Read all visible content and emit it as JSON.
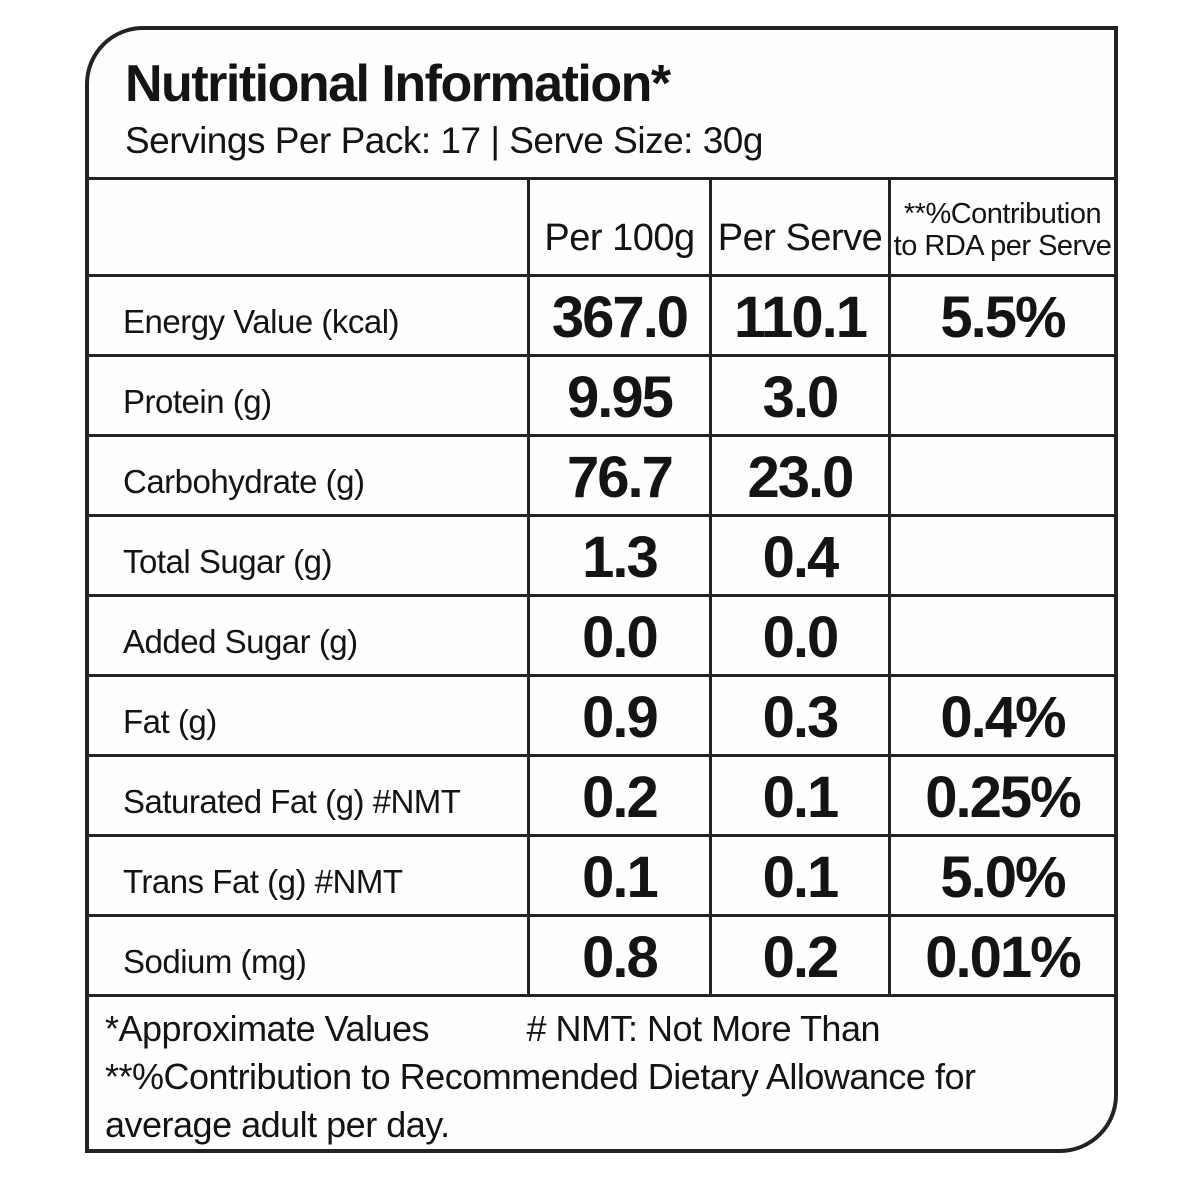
{
  "label": {
    "title": "Nutritional Information*",
    "subtitle": "Servings Per Pack: 17 | Serve Size: 30g",
    "columns": {
      "per_100g": "Per 100g",
      "per_serve": "Per Serve",
      "rda_line1": "**%Contribution",
      "rda_line2": "to RDA per Serve"
    },
    "rows": [
      {
        "name": "Energy Value (kcal)",
        "per_100g": "367.0",
        "per_serve": "110.1",
        "rda": "5.5%"
      },
      {
        "name": "Protein (g)",
        "per_100g": "9.95",
        "per_serve": "3.0",
        "rda": ""
      },
      {
        "name": "Carbohydrate (g)",
        "per_100g": "76.7",
        "per_serve": "23.0",
        "rda": ""
      },
      {
        "name": "Total Sugar (g)",
        "per_100g": "1.3",
        "per_serve": "0.4",
        "rda": ""
      },
      {
        "name": "Added Sugar (g)",
        "per_100g": "0.0",
        "per_serve": "0.0",
        "rda": ""
      },
      {
        "name": "Fat (g)",
        "per_100g": "0.9",
        "per_serve": "0.3",
        "rda": "0.4%"
      },
      {
        "name": "Saturated Fat (g) #NMT",
        "per_100g": "0.2",
        "per_serve": "0.1",
        "rda": "0.25%"
      },
      {
        "name": "Trans Fat (g) #NMT",
        "per_100g": "0.1",
        "per_serve": "0.1",
        "rda": "5.0%"
      },
      {
        "name": "Sodium (mg)",
        "per_100g": "0.8",
        "per_serve": "0.2",
        "rda": "0.01%"
      }
    ],
    "footnotes": {
      "approx": "*Approximate Values",
      "nmt": "# NMT: Not More Than",
      "rda_note": "**%Contribution to Recommended Dietary Allowance for average adult per day."
    },
    "colors": {
      "border": "#232323",
      "text": "#141414",
      "background": "#ffffff"
    }
  }
}
